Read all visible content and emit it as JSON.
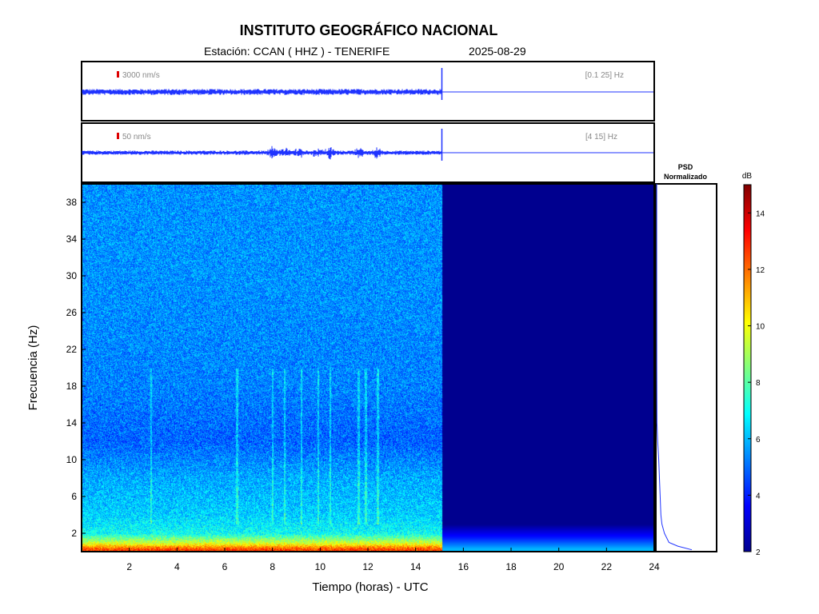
{
  "header": {
    "title": "INSTITUTO GEOGRÁFICO NACIONAL",
    "station": "Estación:  CCAN ( HHZ ) - TENERIFE",
    "date": "2025-08-29"
  },
  "chart_data": [
    {
      "type": "line",
      "panel": "seismogram-broadband",
      "scale_label": "3000 nm/s",
      "band_label": "[0.1 25] Hz",
      "x_range": [
        0,
        24
      ],
      "data_end_hour": 15.1,
      "background_amplitude": "constant",
      "colors": {
        "trace": "#1f33ff",
        "scale_bar": "#dd0000",
        "label": "#888888"
      }
    },
    {
      "type": "line",
      "panel": "seismogram-filtered",
      "scale_label": "50 nm/s",
      "band_label": "[4 15] Hz",
      "x_range": [
        0,
        24
      ],
      "data_end_hour": 15.1,
      "bursts_hours": [
        8.0,
        8.5,
        9.1,
        9.9,
        10.4,
        11.6,
        12.4
      ]
    },
    {
      "type": "heatmap",
      "panel": "spectrogram",
      "xlabel": "Tiempo (horas) - UTC",
      "ylabel": "Frecuencia  (Hz)",
      "xlim": [
        0,
        24
      ],
      "ylim": [
        0,
        40
      ],
      "x_ticks": [
        "2",
        "4",
        "6",
        "8",
        "10",
        "12",
        "14",
        "16",
        "18",
        "20",
        "22",
        "24"
      ],
      "y_ticks": [
        "2",
        "6",
        "10",
        "14",
        "18",
        "22",
        "26",
        "30",
        "34",
        "38"
      ],
      "data_end_hour": 15.1,
      "colormap": "jet",
      "clim": [
        2,
        15
      ],
      "colorbar_label": "dB",
      "colorbar_ticks": [
        "2",
        "4",
        "6",
        "8",
        "10",
        "12",
        "14"
      ],
      "levels_db_by_freq": [
        {
          "f": 0.3,
          "db": 12.5
        },
        {
          "f": 1.0,
          "db": 9.5
        },
        {
          "f": 2.0,
          "db": 7.0
        },
        {
          "f": 4.0,
          "db": 6.3
        },
        {
          "f": 8.0,
          "db": 5.8
        },
        {
          "f": 12.0,
          "db": 4.9
        },
        {
          "f": 18.0,
          "db": 5.3
        },
        {
          "f": 30.0,
          "db": 5.5
        },
        {
          "f": 40.0,
          "db": 5.5
        }
      ],
      "nodata_levels_db": [
        {
          "f": 0.3,
          "db": 6.0
        },
        {
          "f": 1.5,
          "db": 4.0
        },
        {
          "f": 3.0,
          "db": 2.2
        }
      ],
      "transient_hours": [
        2.9,
        6.5,
        8.0,
        8.5,
        9.2,
        9.9,
        10.4,
        11.6,
        11.9,
        12.4
      ]
    },
    {
      "type": "line",
      "panel": "psd",
      "title": "PSD\nNormalizado",
      "series": [
        {
          "freq": [
            0.2,
            0.6,
            1.0,
            2.0,
            3.0,
            4.0,
            6.0,
            8.0,
            10.0,
            12.0,
            14.0,
            20.0,
            30.0,
            40.0
          ],
          "value": [
            1.0,
            0.6,
            0.35,
            0.22,
            0.15,
            0.12,
            0.1,
            0.08,
            0.06,
            0.03,
            0.01,
            0.005,
            0.003,
            0.002
          ]
        }
      ]
    }
  ]
}
